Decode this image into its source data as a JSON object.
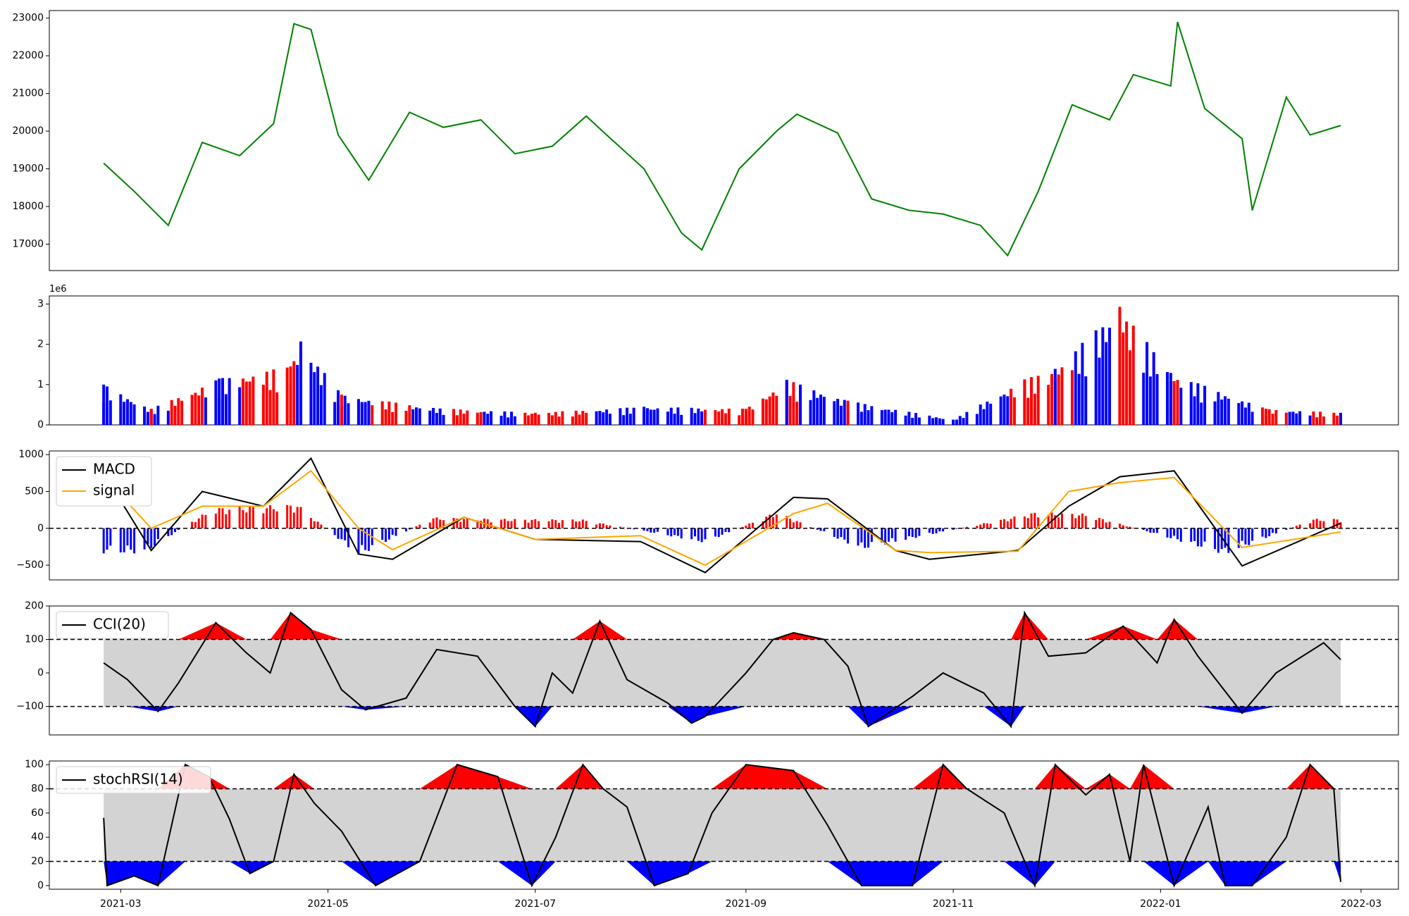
{
  "chart_data": [
    {
      "type": "line",
      "panel": "price",
      "ylim": [
        16300,
        23200
      ],
      "y_ticks": [
        17000,
        18000,
        19000,
        20000,
        21000,
        22000,
        23000
      ],
      "y_tick_labels": [
        "17000",
        "18000",
        "19000",
        "20000",
        "21000",
        "22000",
        "23000"
      ],
      "grid": false,
      "colors": {
        "line": "#008000"
      },
      "x": [
        "2021-02-24",
        "2021-03-05",
        "2021-03-15",
        "2021-03-25",
        "2021-04-05",
        "2021-04-15",
        "2021-04-21",
        "2021-04-26",
        "2021-05-04",
        "2021-05-13",
        "2021-05-25",
        "2021-06-04",
        "2021-06-15",
        "2021-06-25",
        "2021-07-06",
        "2021-07-16",
        "2021-07-22",
        "2021-08-02",
        "2021-08-13",
        "2021-08-19",
        "2021-08-30",
        "2021-09-10",
        "2021-09-16",
        "2021-09-28",
        "2021-10-08",
        "2021-10-19",
        "2021-10-29",
        "2021-11-09",
        "2021-11-17",
        "2021-11-26",
        "2021-12-06",
        "2021-12-17",
        "2021-12-24",
        "2022-01-04",
        "2022-01-06",
        "2022-01-14",
        "2022-01-25",
        "2022-01-28",
        "2022-02-07",
        "2022-02-14",
        "2022-02-23"
      ],
      "values": [
        19150,
        18400,
        17500,
        19700,
        19350,
        20200,
        22850,
        22700,
        19900,
        18700,
        20500,
        20100,
        20300,
        19400,
        19600,
        20400,
        19900,
        19000,
        17300,
        16850,
        19000,
        20000,
        20450,
        19950,
        18200,
        17900,
        17800,
        17500,
        16700,
        18400,
        20700,
        20300,
        21500,
        21200,
        22900,
        20600,
        19800,
        17900,
        20900,
        19900,
        20150
      ]
    },
    {
      "type": "bar",
      "panel": "volume",
      "ylim": [
        0,
        3200000
      ],
      "y_ticks": [
        0,
        1000000,
        2000000,
        3000000
      ],
      "y_tick_labels": [
        "0",
        "1",
        "2",
        "3"
      ],
      "y_offset_label": "1e6",
      "colors": {
        "up": "#ff0000",
        "down": "#0000ff",
        "flat": "#000000"
      },
      "x": [
        "2021-02-24",
        "2021-03-10",
        "2021-03-30",
        "2021-04-20",
        "2021-04-23",
        "2021-05-05",
        "2021-06-01",
        "2021-07-01",
        "2021-08-02",
        "2021-09-01",
        "2021-09-13",
        "2021-10-01",
        "2021-11-01",
        "2021-11-22",
        "2021-12-01",
        "2021-12-20",
        "2022-01-04",
        "2022-02-01",
        "2022-02-23"
      ],
      "values": [
        1000000,
        400000,
        1150000,
        1450000,
        2070000,
        750000,
        420000,
        300000,
        450000,
        400000,
        1120000,
        600000,
        130000,
        1130000,
        1390000,
        2930000,
        1290000,
        400000,
        300000
      ]
    },
    {
      "type": "line",
      "panel": "macd",
      "ylim": [
        -700,
        1050
      ],
      "y_ticks": [
        -500,
        0,
        500,
        1000
      ],
      "y_tick_labels": [
        "−500",
        "0",
        "500",
        "1000"
      ],
      "legend": "top-left",
      "series": [
        {
          "name": "MACD",
          "color": "#000000",
          "values": [
            750,
            -300,
            500,
            300,
            950,
            -350,
            -420,
            150,
            -150,
            -180,
            -600,
            420,
            400,
            -300,
            -420,
            -300,
            300,
            700,
            780,
            -510,
            70
          ]
        },
        {
          "name": "signal",
          "color": "#ffa500",
          "values": [
            700,
            0,
            300,
            300,
            780,
            0,
            -290,
            150,
            -150,
            -100,
            -500,
            200,
            340,
            -300,
            -330,
            -310,
            500,
            620,
            690,
            -260,
            -50
          ]
        }
      ],
      "x": [
        "2021-02-24",
        "2021-03-10",
        "2021-03-25",
        "2021-04-12",
        "2021-04-26",
        "2021-05-10",
        "2021-05-20",
        "2021-06-10",
        "2021-07-01",
        "2021-08-01",
        "2021-08-20",
        "2021-09-15",
        "2021-09-25",
        "2021-10-15",
        "2021-10-25",
        "2021-11-20",
        "2021-12-05",
        "2021-12-20",
        "2022-01-05",
        "2022-01-25",
        "2022-02-23"
      ],
      "hist_x": [
        "2021-03-08",
        "2021-03-28",
        "2021-04-22",
        "2021-05-10",
        "2021-06-01",
        "2021-06-20",
        "2021-07-15",
        "2021-08-20",
        "2021-09-10",
        "2021-10-05",
        "2021-11-25",
        "2021-12-10",
        "2022-01-20",
        "2022-02-15"
      ],
      "hist_values": [
        -340,
        280,
        330,
        -380,
        150,
        130,
        120,
        -200,
        230,
        -290,
        220,
        200,
        -360,
        130
      ],
      "hlines": [
        0
      ]
    },
    {
      "type": "area",
      "panel": "cci",
      "ylim": [
        -185,
        200
      ],
      "y_ticks": [
        -100,
        0,
        100,
        200
      ],
      "y_tick_labels": [
        "−100",
        "0",
        "100",
        "200"
      ],
      "legend": "top-left",
      "series": [
        {
          "name": "CCI(20)",
          "color": "#000000"
        }
      ],
      "band": [
        -100,
        100
      ],
      "hlines": [
        -100,
        100
      ],
      "colors": {
        "band": "#d3d3d3",
        "above": "#ff0000",
        "below": "#0000ff"
      },
      "x": [
        "2021-02-24",
        "2021-03-03",
        "2021-03-12",
        "2021-03-18",
        "2021-03-29",
        "2021-04-07",
        "2021-04-14",
        "2021-04-20",
        "2021-04-26",
        "2021-05-05",
        "2021-05-12",
        "2021-05-24",
        "2021-06-02",
        "2021-06-14",
        "2021-06-25",
        "2021-07-01",
        "2021-07-06",
        "2021-07-12",
        "2021-07-20",
        "2021-07-28",
        "2021-08-09",
        "2021-08-16",
        "2021-08-20",
        "2021-09-01",
        "2021-09-09",
        "2021-09-15",
        "2021-09-24",
        "2021-10-01",
        "2021-10-07",
        "2021-10-20",
        "2021-10-29",
        "2021-11-10",
        "2021-11-18",
        "2021-11-22",
        "2021-11-29",
        "2021-12-10",
        "2021-12-21",
        "2021-12-31",
        "2022-01-05",
        "2022-01-12",
        "2022-01-25",
        "2022-02-04",
        "2022-02-18",
        "2022-02-23"
      ],
      "values": [
        30,
        -20,
        -115,
        -30,
        150,
        60,
        0,
        180,
        130,
        -50,
        -110,
        -75,
        70,
        50,
        -100,
        -160,
        0,
        -60,
        155,
        -20,
        -90,
        -150,
        -130,
        0,
        100,
        120,
        100,
        20,
        -160,
        -70,
        0,
        -60,
        -160,
        180,
        50,
        60,
        140,
        30,
        160,
        50,
        -120,
        0,
        90,
        40
      ]
    },
    {
      "type": "area",
      "panel": "stochrsi",
      "ylim": [
        -3,
        103
      ],
      "y_ticks": [
        0,
        20,
        40,
        60,
        80,
        100
      ],
      "y_tick_labels": [
        "0",
        "20",
        "40",
        "60",
        "80",
        "100"
      ],
      "legend": "top-left",
      "series": [
        {
          "name": "stochRSI(14)",
          "color": "#000000"
        }
      ],
      "band": [
        20,
        80
      ],
      "hlines": [
        20,
        80
      ],
      "colors": {
        "band": "#d3d3d3",
        "above": "#ff0000",
        "below": "#0000ff"
      },
      "x": [
        "2021-02-24",
        "2021-02-25",
        "2021-03-05",
        "2021-03-12",
        "2021-03-20",
        "2021-03-27",
        "2021-04-02",
        "2021-04-08",
        "2021-04-15",
        "2021-04-21",
        "2021-04-27",
        "2021-05-05",
        "2021-05-15",
        "2021-05-28",
        "2021-06-08",
        "2021-06-20",
        "2021-06-30",
        "2021-07-07",
        "2021-07-15",
        "2021-07-21",
        "2021-07-28",
        "2021-08-05",
        "2021-08-15",
        "2021-08-22",
        "2021-09-01",
        "2021-09-15",
        "2021-09-25",
        "2021-10-05",
        "2021-10-20",
        "2021-10-29",
        "2021-11-05",
        "2021-11-16",
        "2021-11-25",
        "2021-12-01",
        "2021-12-10",
        "2021-12-17",
        "2021-12-23",
        "2021-12-27",
        "2022-01-05",
        "2022-01-15",
        "2022-01-20",
        "2022-01-28",
        "2022-02-07",
        "2022-02-14",
        "2022-02-21",
        "2022-02-23"
      ],
      "values": [
        56,
        0,
        8,
        0,
        100,
        90,
        55,
        10,
        20,
        92,
        68,
        45,
        0,
        20,
        100,
        90,
        0,
        40,
        100,
        80,
        65,
        0,
        10,
        60,
        100,
        95,
        50,
        0,
        0,
        100,
        80,
        60,
        0,
        100,
        75,
        92,
        20,
        100,
        0,
        65,
        0,
        0,
        40,
        100,
        80,
        3
      ]
    }
  ],
  "x_axis": {
    "ticks": [
      "2021-03-01",
      "2021-05-01",
      "2021-07-01",
      "2021-09-01",
      "2021-11-01",
      "2022-01-01",
      "2022-03-01"
    ],
    "tick_labels": [
      "2021-03",
      "2021-05",
      "2021-07",
      "2021-09",
      "2021-11",
      "2022-01",
      "2022-03"
    ]
  }
}
